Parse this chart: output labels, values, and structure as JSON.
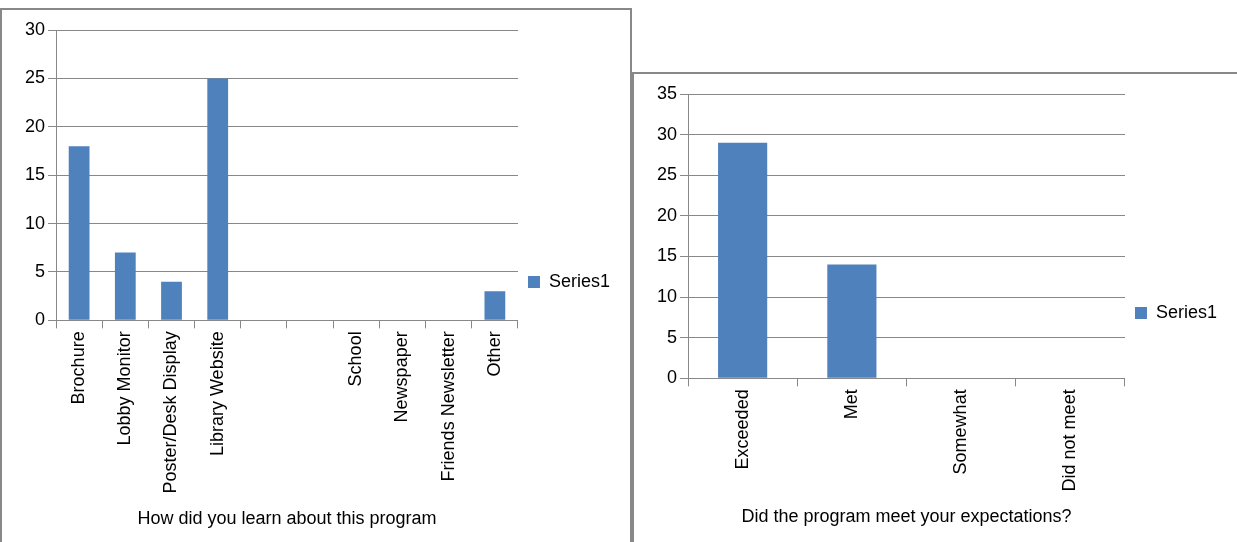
{
  "chart_data": [
    {
      "type": "bar",
      "xlabel": "How did you learn about this program",
      "categories": [
        "Brochure",
        "Lobby Monitor",
        "Poster/Desk Display",
        "Library Website",
        null,
        null,
        "School",
        "Newspaper",
        "Friends Newsletter",
        "Other"
      ],
      "series": [
        {
          "name": "Series1",
          "color": "#4f81bd",
          "values": [
            18,
            7,
            4,
            25,
            0,
            0,
            0,
            0,
            0,
            3
          ]
        }
      ],
      "ylim": [
        0,
        30
      ],
      "yticks": [
        0,
        5,
        10,
        15,
        20,
        25,
        30
      ],
      "grid": "y",
      "legend": "right"
    },
    {
      "type": "bar",
      "xlabel": "Did the program meet your expectations?",
      "categories": [
        "Exceeded",
        "Met",
        "Somewhat",
        "Did not meet"
      ],
      "series": [
        {
          "name": "Series1",
          "color": "#4f81bd",
          "values": [
            29,
            14,
            0,
            0
          ]
        }
      ],
      "ylim": [
        0,
        35
      ],
      "yticks": [
        0,
        5,
        10,
        15,
        20,
        25,
        30,
        35
      ],
      "grid": "y",
      "legend": "right"
    }
  ]
}
